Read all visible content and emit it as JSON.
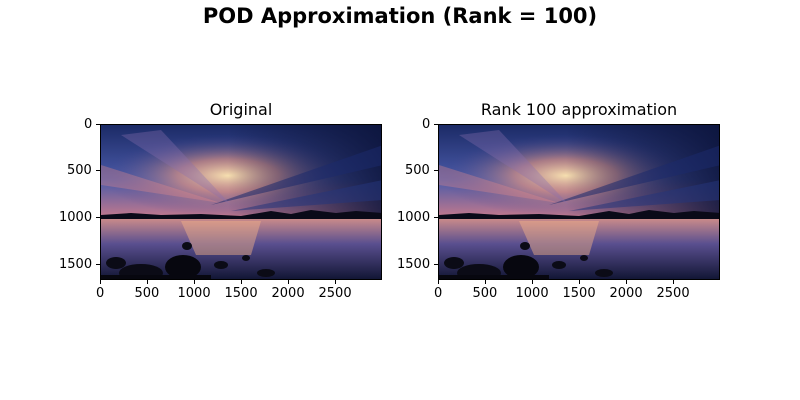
{
  "figure": {
    "title": "POD Approximation (Rank = 100)"
  },
  "panels": [
    {
      "title": "Original",
      "image": "sunset-over-lake-photo",
      "x_ticks": [
        "0",
        "500",
        "1000",
        "1500",
        "2000",
        "2500"
      ],
      "y_ticks": [
        "0",
        "500",
        "1000",
        "1500"
      ],
      "x_tick_values": [
        0,
        500,
        1000,
        1500,
        2000,
        2500
      ],
      "y_tick_values": [
        0,
        500,
        1000,
        1500
      ],
      "x_range": [
        0,
        3000
      ],
      "y_range": [
        0,
        1667
      ]
    },
    {
      "title": "Rank 100 approximation",
      "image": "sunset-over-lake-photo-rank-100",
      "x_ticks": [
        "0",
        "500",
        "1000",
        "1500",
        "2000",
        "2500"
      ],
      "y_ticks": [
        "0",
        "500",
        "1000",
        "1500"
      ],
      "x_tick_values": [
        0,
        500,
        1000,
        1500,
        2000,
        2500
      ],
      "y_tick_values": [
        0,
        500,
        1000,
        1500
      ],
      "x_range": [
        0,
        3000
      ],
      "y_range": [
        0,
        1667
      ]
    }
  ]
}
